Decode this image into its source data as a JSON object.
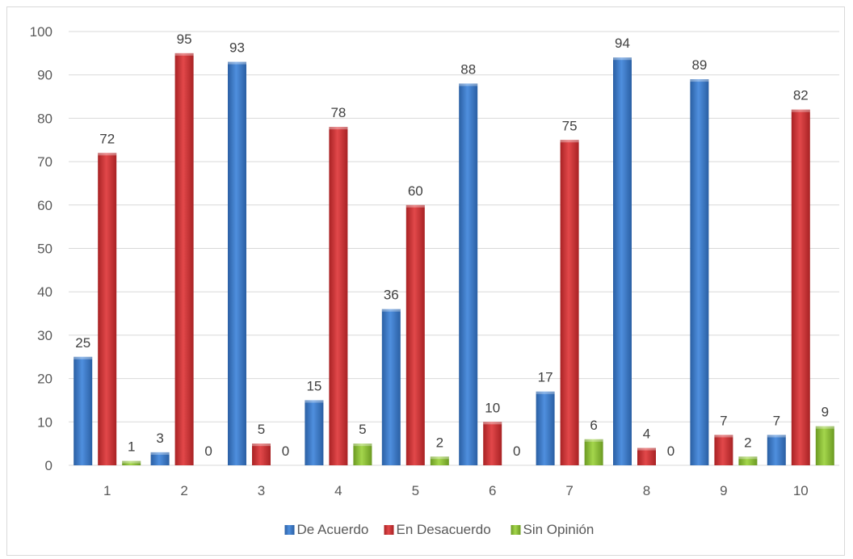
{
  "chart_data": {
    "type": "bar",
    "categories": [
      "1",
      "2",
      "3",
      "4",
      "5",
      "6",
      "7",
      "8",
      "9",
      "10"
    ],
    "series": [
      {
        "name": "De Acuerdo",
        "color": "#3d7cc9",
        "values": [
          25,
          3,
          93,
          15,
          36,
          88,
          17,
          94,
          89,
          7
        ]
      },
      {
        "name": "En Desacuerdo",
        "color": "#d0393b",
        "values": [
          72,
          95,
          5,
          78,
          60,
          10,
          75,
          4,
          7,
          82
        ]
      },
      {
        "name": "Sin Opinión",
        "color": "#8fc43c",
        "values": [
          1,
          0,
          0,
          5,
          2,
          0,
          6,
          0,
          2,
          9
        ]
      }
    ],
    "ylim": [
      0,
      100
    ],
    "yticks": [
      0,
      10,
      20,
      30,
      40,
      50,
      60,
      70,
      80,
      90,
      100
    ],
    "grid": true,
    "legend": "bottom",
    "data_labels": true
  }
}
